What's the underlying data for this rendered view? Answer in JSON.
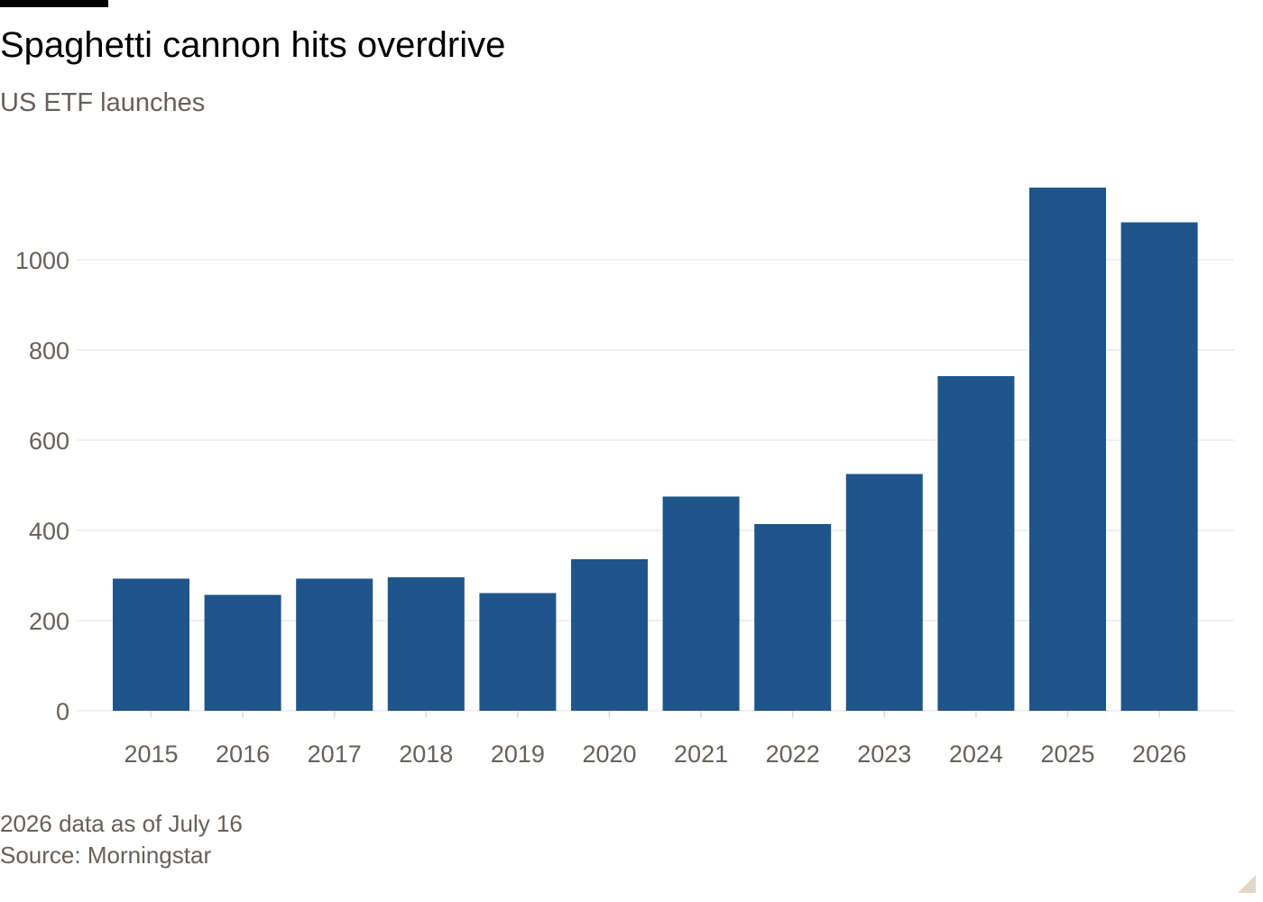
{
  "header": {
    "title": "Spaghetti cannon hits overdrive",
    "subtitle": "US ETF launches"
  },
  "footer": {
    "note": "2026 data as of July 16",
    "source": "Source: Morningstar"
  },
  "colors": {
    "bar": "#1f558b",
    "grid": "#efeae6",
    "axis_text": "#66605c"
  },
  "chart_data": {
    "type": "bar",
    "title": "Spaghetti cannon hits overdrive",
    "subtitle": "US ETF launches",
    "xlabel": "",
    "ylabel": "",
    "categories": [
      "2015",
      "2016",
      "2017",
      "2018",
      "2019",
      "2020",
      "2021",
      "2022",
      "2023",
      "2024",
      "2025",
      "2026"
    ],
    "series": [
      {
        "values": [
          293,
          257,
          293,
          296,
          261,
          336,
          475,
          414,
          525,
          742,
          1160,
          1083
        ]
      }
    ],
    "ylim": [
      0,
      1200
    ],
    "yticks": [
      0,
      200,
      400,
      600,
      800,
      1000
    ],
    "grid": true,
    "legend": "none"
  }
}
